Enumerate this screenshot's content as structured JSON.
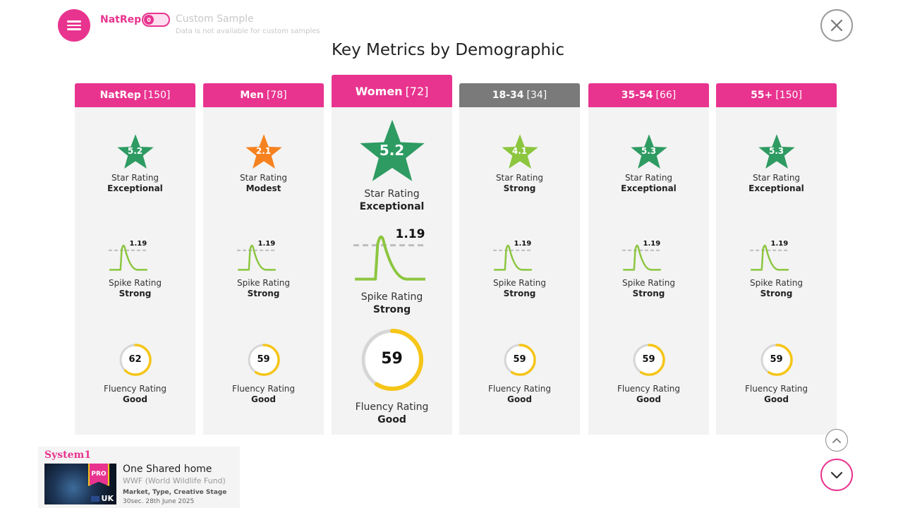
{
  "header": {
    "natrep_label": "NatRep",
    "toggle_knob_text": "0",
    "custom_sample_label": "Custom Sample",
    "custom_sample_note": "Data is not available for custom samples"
  },
  "page_title": "Key Metrics by Demographic",
  "columns": [
    {
      "name": "NatRep",
      "count": "[150]",
      "star": "5.2",
      "star_color": "#2e9b62",
      "star_label": "Star Rating",
      "star_value": "Exceptional",
      "spike": "1.19",
      "spike_label": "Spike Rating",
      "spike_value": "Strong",
      "fluency": "62",
      "fluency_fraction": 0.62,
      "fluency_label": "Fluency Rating",
      "fluency_value": "Good",
      "header_color": "#e8348f"
    },
    {
      "name": "Men",
      "count": "[78]",
      "star": "2.1",
      "star_color": "#f5821f",
      "star_label": "Star Rating",
      "star_value": "Modest",
      "spike": "1.19",
      "spike_label": "Spike Rating",
      "spike_value": "Strong",
      "fluency": "59",
      "fluency_fraction": 0.59,
      "fluency_label": "Fluency Rating",
      "fluency_value": "Good",
      "header_color": "#e8348f"
    },
    {
      "name": "Women",
      "count": "[72]",
      "star": "5.2",
      "star_color": "#2e9b62",
      "star_label": "Star Rating",
      "star_value": "Exceptional",
      "spike": "1.19",
      "spike_label": "Spike Rating",
      "spike_value": "Strong",
      "fluency": "59",
      "fluency_fraction": 0.59,
      "fluency_label": "Fluency Rating",
      "fluency_value": "Good",
      "header_color": "#e8348f"
    },
    {
      "name": "18-34",
      "count": "[34]",
      "star": "4.1",
      "star_color": "#8cc63f",
      "star_label": "Star Rating",
      "star_value": "Strong",
      "spike": "1.19",
      "spike_label": "Spike Rating",
      "spike_value": "Strong",
      "fluency": "59",
      "fluency_fraction": 0.59,
      "fluency_label": "Fluency Rating",
      "fluency_value": "Good",
      "header_color": "#7a7a7a"
    },
    {
      "name": "35-54",
      "count": "[66]",
      "star": "5.3",
      "star_color": "#2e9b62",
      "star_label": "Star Rating",
      "star_value": "Exceptional",
      "spike": "1.19",
      "spike_label": "Spike Rating",
      "spike_value": "Strong",
      "fluency": "59",
      "fluency_fraction": 0.59,
      "fluency_label": "Fluency Rating",
      "fluency_value": "Good",
      "header_color": "#e8348f"
    },
    {
      "name": "55+",
      "count": "[150]",
      "star": "5.3",
      "star_color": "#2e9b62",
      "star_label": "Star Rating",
      "star_value": "Exceptional",
      "spike": "1.19",
      "spike_label": "Spike Rating",
      "spike_value": "Strong",
      "fluency": "59",
      "fluency_fraction": 0.59,
      "fluency_label": "Fluency Rating",
      "fluency_value": "Good",
      "header_color": "#e8348f"
    }
  ],
  "ad": {
    "brand_logo_text": "System1",
    "pro_badge": "PRO",
    "country": "UK",
    "title": "One Shared home",
    "advertiser": "WWF (World Wildlife Fund)",
    "meta": "Market, Type, Creative Stage",
    "date": "30sec.  28th June 2025"
  },
  "colors": {
    "accent": "#e8348f",
    "spike_line": "#8cc63f",
    "fluency_ring": "#f5c518"
  },
  "icons": {
    "menu": "hamburger-icon",
    "close": "close-icon",
    "scroll_up": "chevron-up-icon",
    "scroll_down": "chevron-down-icon"
  }
}
